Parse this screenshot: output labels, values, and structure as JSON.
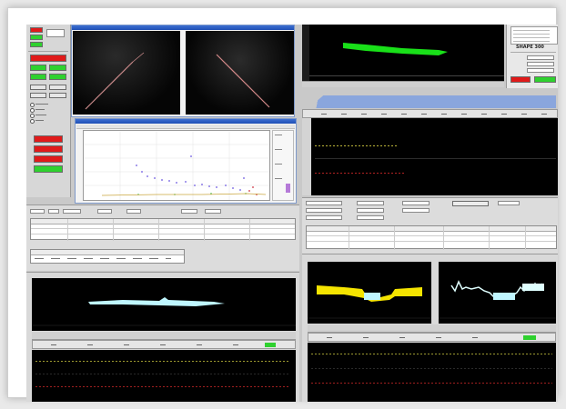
{
  "left_panel": {
    "buttons": [
      {
        "label": "",
        "color": "red"
      },
      {
        "label": "",
        "color": "green"
      },
      {
        "label": "",
        "color": "green"
      },
      {
        "label": "",
        "color": "green"
      },
      {
        "label": "",
        "color": "green"
      },
      {
        "label": "",
        "color": "green"
      },
      {
        "label": "",
        "color": "green"
      }
    ],
    "bottom_buttons": [
      {
        "color": "red"
      },
      {
        "color": "red"
      },
      {
        "color": "red"
      },
      {
        "color": "green"
      }
    ]
  },
  "camera_window": {
    "title": ""
  },
  "chart_window": {
    "title": ""
  },
  "top_right_info": {
    "heading": "SHAPE 300",
    "buttons": [
      {
        "color": "red"
      },
      {
        "color": "green"
      }
    ]
  },
  "colors": {
    "profile_green": "#19e019",
    "profile_yellow": "#f5e400",
    "profile_cyan": "#bff6ff",
    "selected_green": "#2fd12f",
    "accent_blue": "#8aa6dd"
  }
}
